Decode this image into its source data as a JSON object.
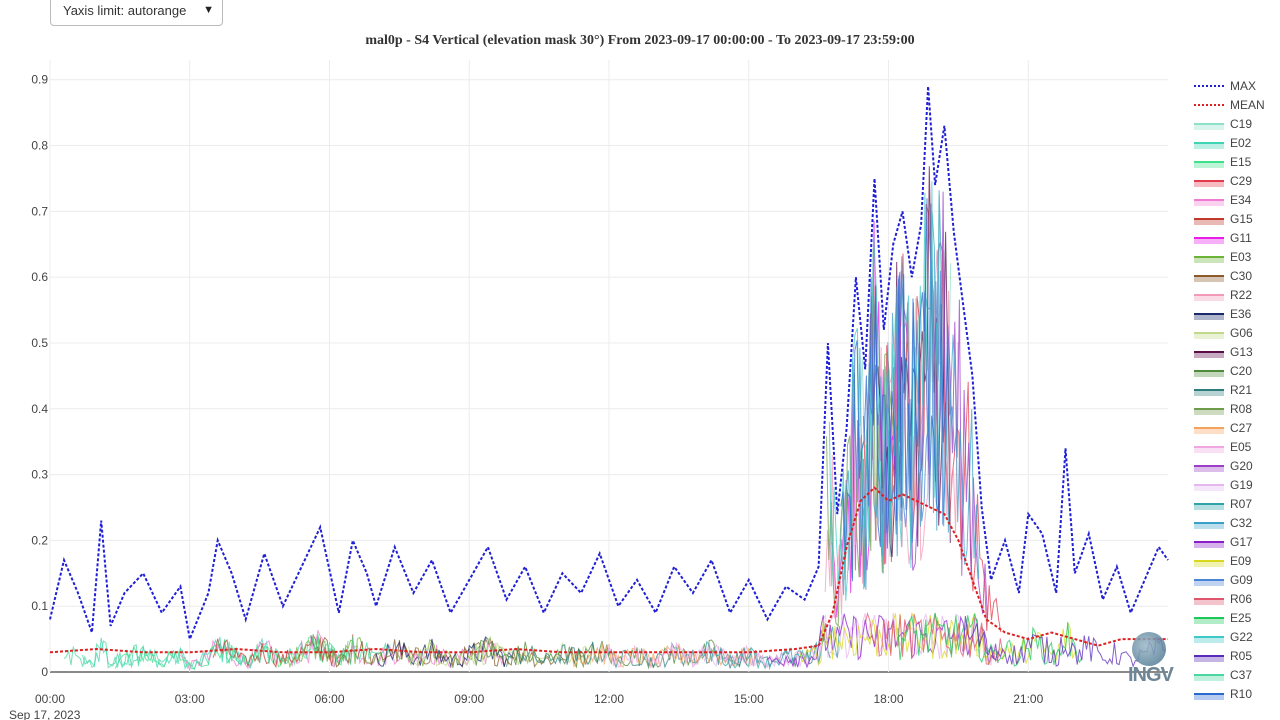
{
  "controls": {
    "yaxis_select_label": "Yaxis limit: autorange",
    "yaxis_select_arrow": "▼"
  },
  "chart_data": {
    "type": "line",
    "title": "mal0p - S4 Vertical (elevation mask 30°) From 2023-09-17 00:00:00 - To 2023-09-17 23:59:00",
    "xlabel": "",
    "ylabel": "",
    "x_ticks": [
      "00:00",
      "03:00",
      "06:00",
      "09:00",
      "12:00",
      "15:00",
      "18:00",
      "21:00"
    ],
    "x_tick_hours": [
      0,
      3,
      6,
      9,
      12,
      15,
      18,
      21
    ],
    "x_date_label": "Sep 17, 2023",
    "xlim_hours": [
      0,
      24
    ],
    "y_ticks": [
      "0",
      "0.1",
      "0.2",
      "0.3",
      "0.4",
      "0.5",
      "0.6",
      "0.7",
      "0.8",
      "0.9"
    ],
    "ylim": [
      0,
      0.93
    ],
    "grid": true,
    "legend_position": "right",
    "series": [
      {
        "name": "MAX",
        "color": "#1f1fd6",
        "dash": true,
        "x": [
          0,
          0.3,
          0.6,
          0.9,
          1.1,
          1.3,
          1.6,
          2.0,
          2.4,
          2.8,
          3.0,
          3.4,
          3.6,
          3.9,
          4.2,
          4.6,
          5.0,
          5.4,
          5.8,
          6.2,
          6.5,
          6.8,
          7.0,
          7.4,
          7.8,
          8.2,
          8.6,
          9.0,
          9.4,
          9.8,
          10.2,
          10.6,
          11.0,
          11.4,
          11.8,
          12.2,
          12.6,
          13.0,
          13.4,
          13.8,
          14.2,
          14.6,
          15.0,
          15.4,
          15.8,
          16.2,
          16.5,
          16.7,
          16.9,
          17.1,
          17.3,
          17.5,
          17.7,
          17.9,
          18.1,
          18.3,
          18.5,
          18.7,
          18.85,
          19.0,
          19.2,
          19.4,
          19.6,
          19.8,
          20.0,
          20.2,
          20.5,
          20.8,
          21.0,
          21.3,
          21.6,
          21.8,
          22.0,
          22.3,
          22.6,
          22.9,
          23.2,
          23.5,
          23.8,
          24.0
        ],
        "y": [
          0.08,
          0.17,
          0.12,
          0.06,
          0.23,
          0.07,
          0.12,
          0.15,
          0.09,
          0.13,
          0.05,
          0.12,
          0.2,
          0.15,
          0.08,
          0.18,
          0.1,
          0.16,
          0.22,
          0.09,
          0.2,
          0.15,
          0.1,
          0.19,
          0.12,
          0.17,
          0.09,
          0.14,
          0.19,
          0.11,
          0.16,
          0.09,
          0.15,
          0.12,
          0.18,
          0.1,
          0.14,
          0.09,
          0.16,
          0.12,
          0.17,
          0.09,
          0.14,
          0.08,
          0.13,
          0.11,
          0.16,
          0.5,
          0.24,
          0.37,
          0.6,
          0.46,
          0.75,
          0.52,
          0.65,
          0.7,
          0.6,
          0.68,
          0.89,
          0.74,
          0.83,
          0.67,
          0.56,
          0.45,
          0.25,
          0.14,
          0.2,
          0.12,
          0.24,
          0.21,
          0.12,
          0.34,
          0.15,
          0.21,
          0.11,
          0.16,
          0.09,
          0.14,
          0.19,
          0.17
        ]
      },
      {
        "name": "MEAN",
        "color": "#e02020",
        "dash": true,
        "x": [
          0,
          1,
          2,
          3,
          4,
          5,
          6,
          7,
          8,
          9,
          10,
          11,
          12,
          13,
          14,
          15,
          16,
          16.5,
          16.8,
          17.1,
          17.4,
          17.7,
          18.0,
          18.3,
          18.6,
          18.9,
          19.2,
          19.5,
          19.8,
          20.1,
          20.5,
          21.0,
          21.5,
          22.0,
          22.5,
          23.0,
          23.5,
          24.0
        ],
        "y": [
          0.03,
          0.035,
          0.03,
          0.03,
          0.035,
          0.03,
          0.03,
          0.035,
          0.03,
          0.03,
          0.035,
          0.03,
          0.03,
          0.03,
          0.03,
          0.03,
          0.035,
          0.04,
          0.09,
          0.19,
          0.26,
          0.28,
          0.26,
          0.27,
          0.26,
          0.25,
          0.24,
          0.2,
          0.14,
          0.08,
          0.06,
          0.05,
          0.06,
          0.05,
          0.04,
          0.05,
          0.05,
          0.05
        ]
      },
      {
        "name": "C19",
        "color": "#8fe0c8"
      },
      {
        "name": "E02",
        "color": "#40d4b4"
      },
      {
        "name": "E15",
        "color": "#3ee08a"
      },
      {
        "name": "C29",
        "color": "#e23b4e"
      },
      {
        "name": "E34",
        "color": "#f07cd0"
      },
      {
        "name": "G15",
        "color": "#c0392b"
      },
      {
        "name": "G11",
        "color": "#e81ee8"
      },
      {
        "name": "E03",
        "color": "#6cb33a"
      },
      {
        "name": "C30",
        "color": "#8a5a2b"
      },
      {
        "name": "R22",
        "color": "#f29ab8"
      },
      {
        "name": "E36",
        "color": "#1b2a6b"
      },
      {
        "name": "G06",
        "color": "#c2d98a"
      },
      {
        "name": "G13",
        "color": "#5b0d4a"
      },
      {
        "name": "C20",
        "color": "#4e8a3a"
      },
      {
        "name": "R21",
        "color": "#2e7d7d"
      },
      {
        "name": "R08",
        "color": "#6f9c4a"
      },
      {
        "name": "C27",
        "color": "#f5a45c"
      },
      {
        "name": "E05",
        "color": "#f0a6e0"
      },
      {
        "name": "G20",
        "color": "#9b3fc7"
      },
      {
        "name": "G19",
        "color": "#e6b6f0"
      },
      {
        "name": "R07",
        "color": "#2fa3a8"
      },
      {
        "name": "C32",
        "color": "#3aa0c8"
      },
      {
        "name": "G17",
        "color": "#8a1fc8"
      },
      {
        "name": "E09",
        "color": "#d8d81e"
      },
      {
        "name": "G09",
        "color": "#4a84d8"
      },
      {
        "name": "R06",
        "color": "#e0556e"
      },
      {
        "name": "E25",
        "color": "#1ec85a"
      },
      {
        "name": "G22",
        "color": "#3ec8c8"
      },
      {
        "name": "R05",
        "color": "#5a2ab8"
      },
      {
        "name": "C37",
        "color": "#4ad8a0"
      },
      {
        "name": "R10",
        "color": "#2a6ad0"
      }
    ]
  },
  "logo": {
    "text": "INGV"
  }
}
